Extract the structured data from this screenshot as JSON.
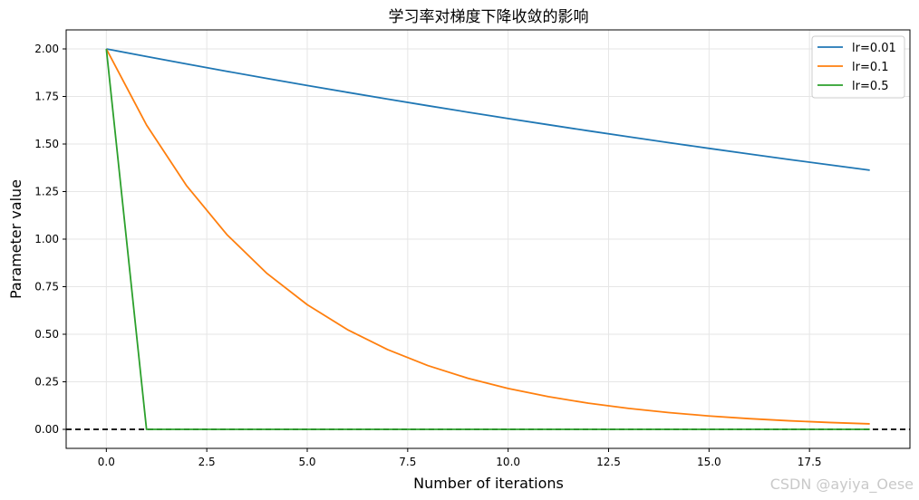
{
  "chart_data": {
    "type": "line",
    "title": "学习率对梯度下降收敛的影响",
    "xlabel": "Number of iterations",
    "ylabel": "Parameter value",
    "xlim": [
      -1,
      20
    ],
    "ylim": [
      -0.1,
      2.1
    ],
    "x_ticks": [
      "0.0",
      "2.5",
      "5.0",
      "7.5",
      "10.0",
      "12.5",
      "15.0",
      "17.5"
    ],
    "x_tick_values": [
      0,
      2.5,
      5,
      7.5,
      10,
      12.5,
      15,
      17.5
    ],
    "y_ticks": [
      "0.00",
      "0.25",
      "0.50",
      "0.75",
      "1.00",
      "1.25",
      "1.50",
      "1.75",
      "2.00"
    ],
    "y_tick_values": [
      0,
      0.25,
      0.5,
      0.75,
      1.0,
      1.25,
      1.5,
      1.75,
      2.0
    ],
    "grid": true,
    "legend_position": "top-right",
    "reference_line": {
      "y": 0,
      "style": "dashed",
      "color": "#000000"
    },
    "x": [
      0,
      1,
      2,
      3,
      4,
      5,
      6,
      7,
      8,
      9,
      10,
      11,
      12,
      13,
      14,
      15,
      16,
      17,
      18,
      19
    ],
    "series": [
      {
        "name": "lr=0.01",
        "color": "#1f77b4",
        "values": [
          2.0,
          1.96,
          1.9208,
          1.8824,
          1.8447,
          1.8078,
          1.7717,
          1.7363,
          1.7015,
          1.6675,
          1.6341,
          1.6015,
          1.5694,
          1.538,
          1.5073,
          1.4771,
          1.4476,
          1.4186,
          1.3903,
          1.3625
        ]
      },
      {
        "name": "lr=0.1",
        "color": "#ff7f0e",
        "values": [
          2.0,
          1.6,
          1.28,
          1.024,
          0.8192,
          0.6554,
          0.5243,
          0.4194,
          0.3355,
          0.2684,
          0.2147,
          0.1718,
          0.1374,
          0.11,
          0.088,
          0.0704,
          0.0563,
          0.045,
          0.036,
          0.0288
        ]
      },
      {
        "name": "lr=0.5",
        "color": "#2ca02c",
        "values": [
          2.0,
          0,
          0,
          0,
          0,
          0,
          0,
          0,
          0,
          0,
          0,
          0,
          0,
          0,
          0,
          0,
          0,
          0,
          0,
          0
        ]
      }
    ]
  },
  "watermark": "CSDN @ayiya_Oese"
}
